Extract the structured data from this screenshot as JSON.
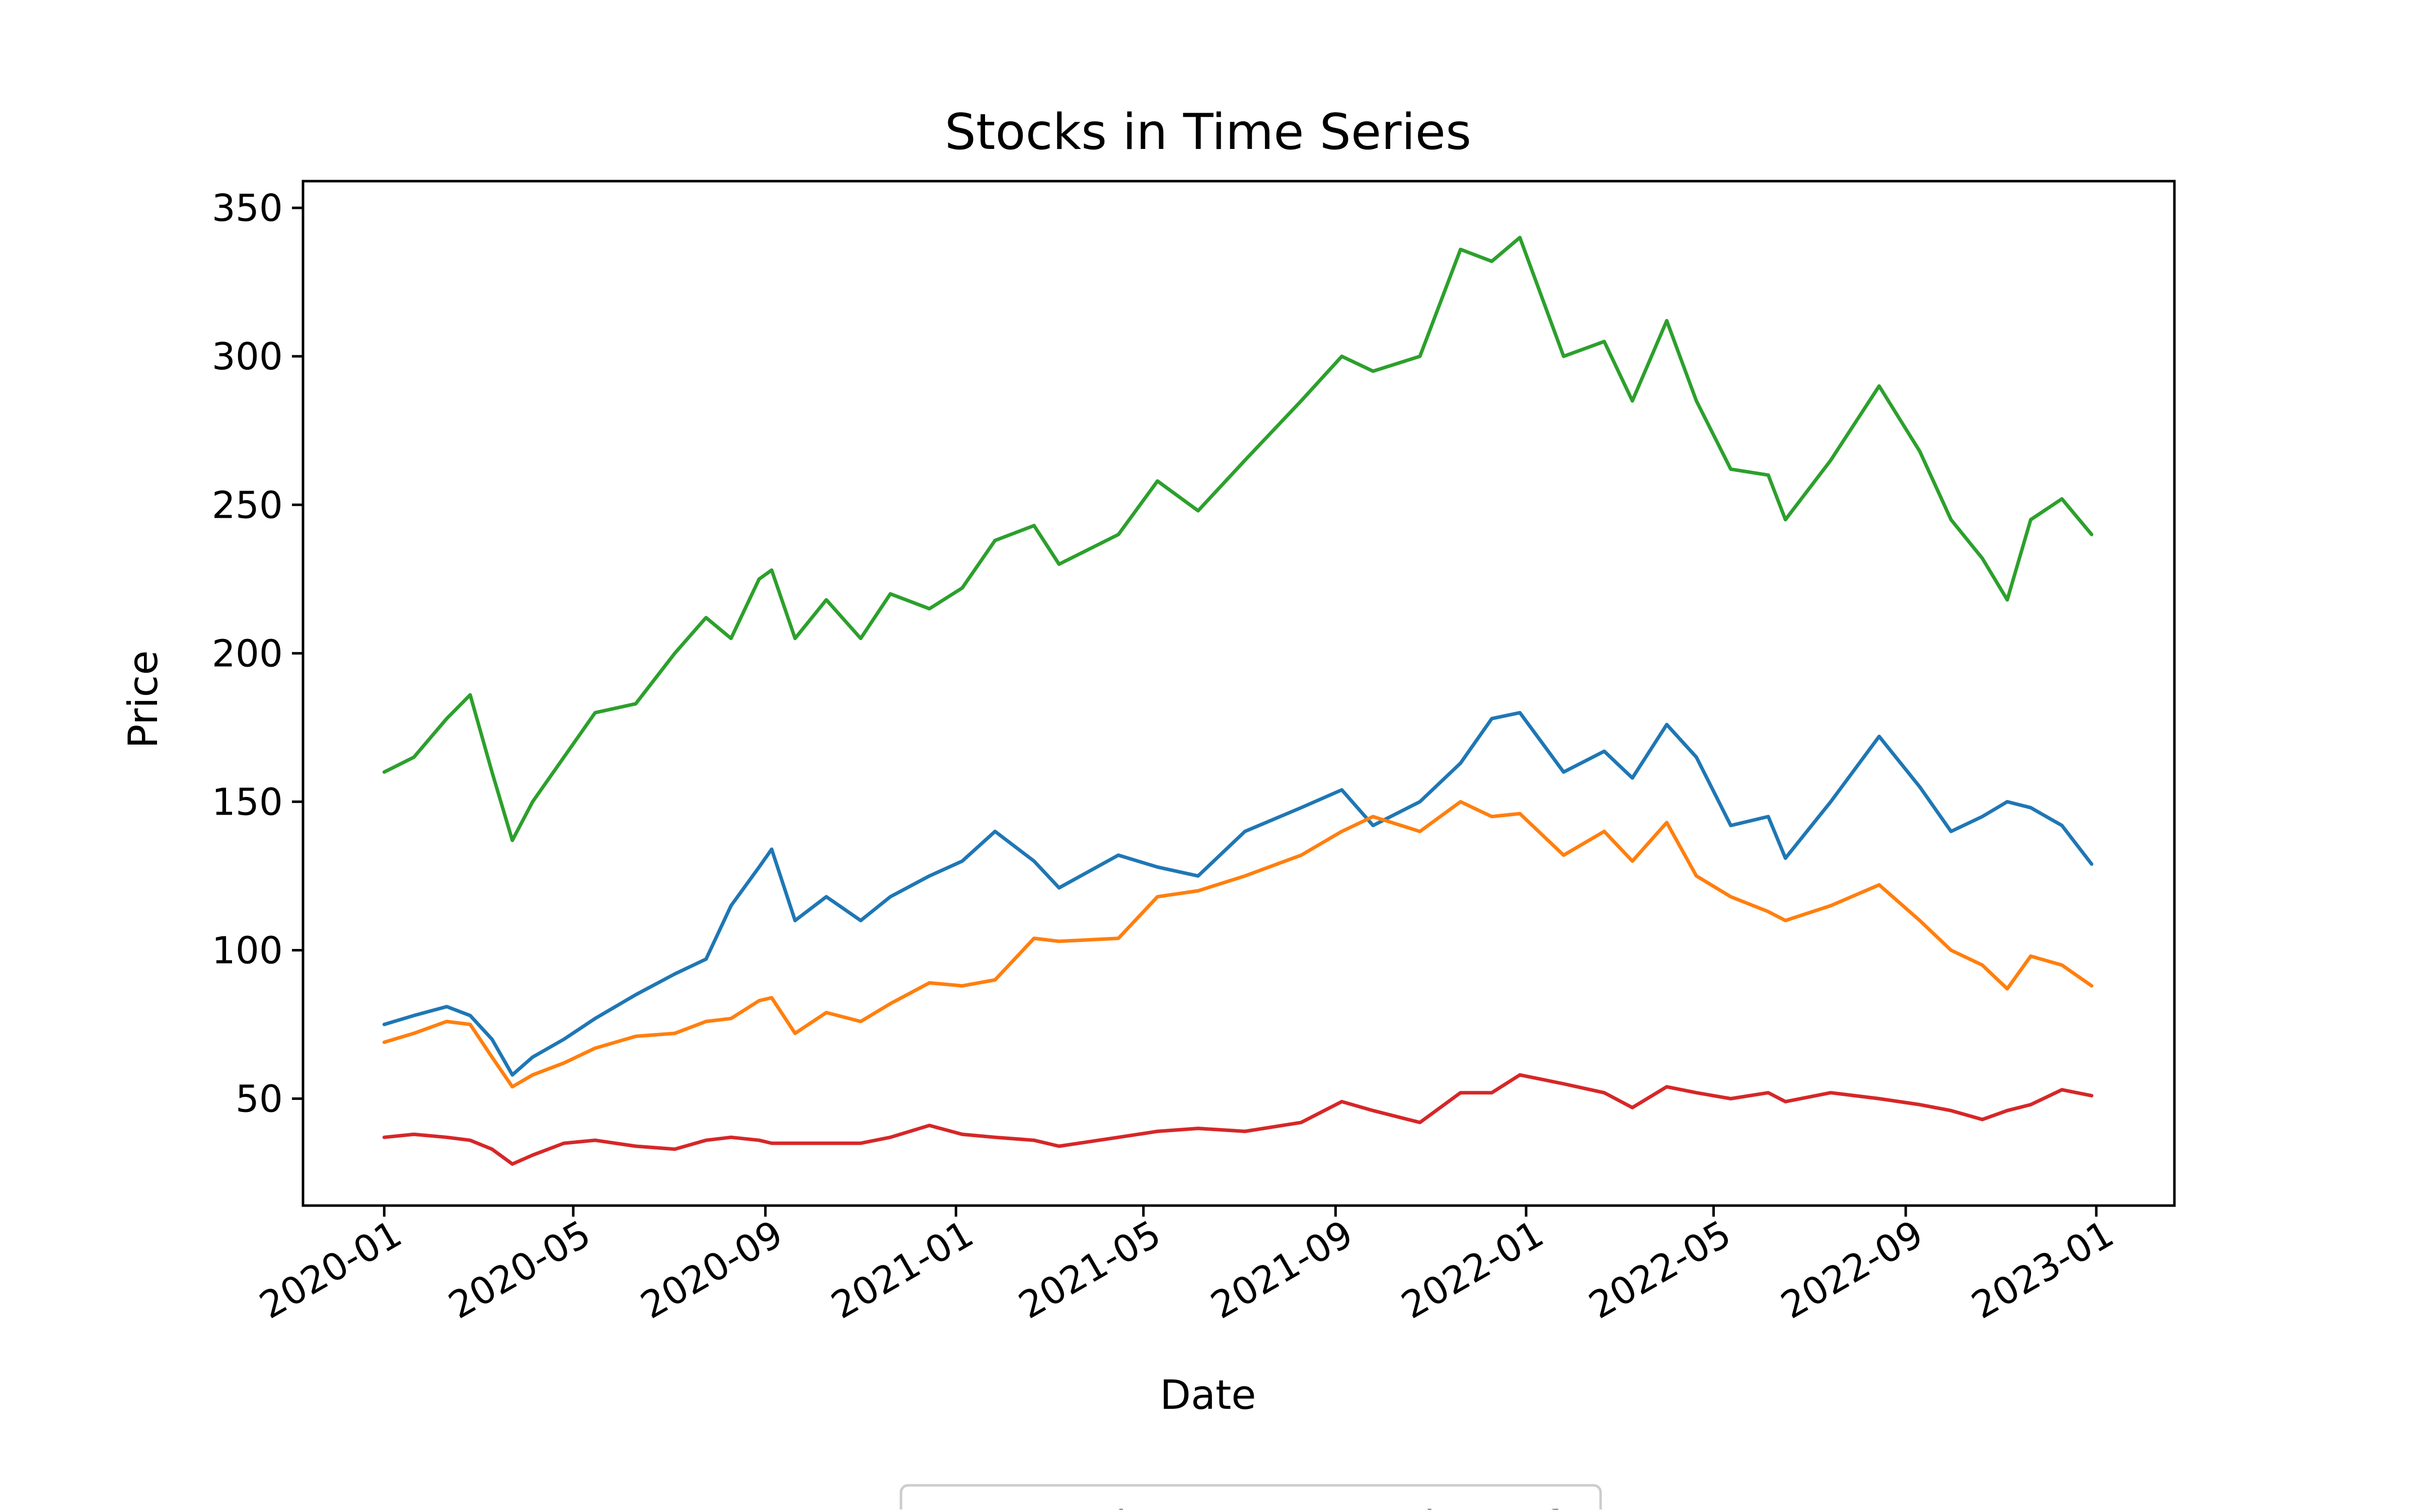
{
  "chart_data": {
    "type": "line",
    "title": "Stocks in Time Series",
    "xlabel": "Date",
    "ylabel": "Price",
    "xlim": [
      "2019-11-10",
      "2023-02-20"
    ],
    "ylim": [
      14,
      359
    ],
    "x_ticks": [
      "2020-01",
      "2020-05",
      "2020-09",
      "2021-01",
      "2021-05",
      "2021-09",
      "2022-01",
      "2022-05",
      "2022-09",
      "2023-01"
    ],
    "y_ticks": [
      50,
      100,
      150,
      200,
      250,
      300,
      350
    ],
    "grid": false,
    "legend": {
      "placement": "bottom-center",
      "visible_partially": true
    },
    "series": [
      {
        "name": "Apple",
        "color": "#1f77b4",
        "points": [
          [
            "2020-01-01",
            75
          ],
          [
            "2020-01-20",
            78
          ],
          [
            "2020-02-10",
            81
          ],
          [
            "2020-02-25",
            78
          ],
          [
            "2020-03-10",
            70
          ],
          [
            "2020-03-23",
            58
          ],
          [
            "2020-04-05",
            64
          ],
          [
            "2020-04-25",
            70
          ],
          [
            "2020-05-15",
            77
          ],
          [
            "2020-06-10",
            85
          ],
          [
            "2020-07-05",
            92
          ],
          [
            "2020-07-25",
            97
          ],
          [
            "2020-08-10",
            115
          ],
          [
            "2020-08-28",
            128
          ],
          [
            "2020-09-05",
            134
          ],
          [
            "2020-09-20",
            110
          ],
          [
            "2020-10-10",
            118
          ],
          [
            "2020-11-01",
            110
          ],
          [
            "2020-11-20",
            118
          ],
          [
            "2020-12-15",
            125
          ],
          [
            "2021-01-05",
            130
          ],
          [
            "2021-01-26",
            140
          ],
          [
            "2021-02-20",
            130
          ],
          [
            "2021-03-08",
            121
          ],
          [
            "2021-04-15",
            132
          ],
          [
            "2021-05-10",
            128
          ],
          [
            "2021-06-05",
            125
          ],
          [
            "2021-07-05",
            140
          ],
          [
            "2021-08-10",
            148
          ],
          [
            "2021-09-05",
            154
          ],
          [
            "2021-09-25",
            142
          ],
          [
            "2021-10-25",
            150
          ],
          [
            "2021-11-20",
            163
          ],
          [
            "2021-12-10",
            178
          ],
          [
            "2021-12-28",
            180
          ],
          [
            "2022-01-25",
            160
          ],
          [
            "2022-02-20",
            167
          ],
          [
            "2022-03-10",
            158
          ],
          [
            "2022-04-01",
            176
          ],
          [
            "2022-04-20",
            165
          ],
          [
            "2022-05-12",
            142
          ],
          [
            "2022-06-05",
            145
          ],
          [
            "2022-06-16",
            131
          ],
          [
            "2022-07-15",
            150
          ],
          [
            "2022-08-15",
            172
          ],
          [
            "2022-09-10",
            155
          ],
          [
            "2022-09-30",
            140
          ],
          [
            "2022-10-20",
            145
          ],
          [
            "2022-11-05",
            150
          ],
          [
            "2022-11-20",
            148
          ],
          [
            "2022-12-10",
            142
          ],
          [
            "2022-12-29",
            129
          ]
        ]
      },
      {
        "name": "Microsoft",
        "color": "#ff7f0e",
        "points": [
          [
            "2020-01-01",
            69
          ],
          [
            "2020-01-20",
            72
          ],
          [
            "2020-02-10",
            76
          ],
          [
            "2020-02-25",
            75
          ],
          [
            "2020-03-10",
            64
          ],
          [
            "2020-03-23",
            54
          ],
          [
            "2020-04-05",
            58
          ],
          [
            "2020-04-25",
            62
          ],
          [
            "2020-05-15",
            67
          ],
          [
            "2020-06-10",
            71
          ],
          [
            "2020-07-05",
            72
          ],
          [
            "2020-07-25",
            76
          ],
          [
            "2020-08-10",
            77
          ],
          [
            "2020-08-28",
            83
          ],
          [
            "2020-09-05",
            84
          ],
          [
            "2020-09-20",
            72
          ],
          [
            "2020-10-10",
            79
          ],
          [
            "2020-11-01",
            76
          ],
          [
            "2020-11-20",
            82
          ],
          [
            "2020-12-15",
            89
          ],
          [
            "2021-01-05",
            88
          ],
          [
            "2021-01-26",
            90
          ],
          [
            "2021-02-20",
            104
          ],
          [
            "2021-03-08",
            103
          ],
          [
            "2021-04-15",
            104
          ],
          [
            "2021-05-10",
            118
          ],
          [
            "2021-06-05",
            120
          ],
          [
            "2021-07-05",
            125
          ],
          [
            "2021-08-10",
            132
          ],
          [
            "2021-09-05",
            140
          ],
          [
            "2021-09-25",
            145
          ],
          [
            "2021-10-25",
            140
          ],
          [
            "2021-11-20",
            150
          ],
          [
            "2021-12-10",
            145
          ],
          [
            "2021-12-28",
            146
          ],
          [
            "2022-01-25",
            132
          ],
          [
            "2022-02-20",
            140
          ],
          [
            "2022-03-10",
            130
          ],
          [
            "2022-04-01",
            143
          ],
          [
            "2022-04-20",
            125
          ],
          [
            "2022-05-12",
            118
          ],
          [
            "2022-06-05",
            113
          ],
          [
            "2022-06-16",
            110
          ],
          [
            "2022-07-15",
            115
          ],
          [
            "2022-08-15",
            122
          ],
          [
            "2022-09-10",
            110
          ],
          [
            "2022-09-30",
            100
          ],
          [
            "2022-10-20",
            95
          ],
          [
            "2022-11-05",
            87
          ],
          [
            "2022-11-20",
            98
          ],
          [
            "2022-12-10",
            95
          ],
          [
            "2022-12-29",
            88
          ]
        ]
      },
      {
        "name": "",
        "color": "#2ca02c",
        "points": [
          [
            "2020-01-01",
            160
          ],
          [
            "2020-01-20",
            165
          ],
          [
            "2020-02-10",
            178
          ],
          [
            "2020-02-25",
            186
          ],
          [
            "2020-03-10",
            160
          ],
          [
            "2020-03-23",
            137
          ],
          [
            "2020-04-05",
            150
          ],
          [
            "2020-04-25",
            165
          ],
          [
            "2020-05-15",
            180
          ],
          [
            "2020-06-10",
            183
          ],
          [
            "2020-07-05",
            200
          ],
          [
            "2020-07-25",
            212
          ],
          [
            "2020-08-10",
            205
          ],
          [
            "2020-08-28",
            225
          ],
          [
            "2020-09-05",
            228
          ],
          [
            "2020-09-20",
            205
          ],
          [
            "2020-10-10",
            218
          ],
          [
            "2020-11-01",
            205
          ],
          [
            "2020-11-20",
            220
          ],
          [
            "2020-12-15",
            215
          ],
          [
            "2021-01-05",
            222
          ],
          [
            "2021-01-26",
            238
          ],
          [
            "2021-02-20",
            243
          ],
          [
            "2021-03-08",
            230
          ],
          [
            "2021-04-15",
            240
          ],
          [
            "2021-05-10",
            258
          ],
          [
            "2021-06-05",
            248
          ],
          [
            "2021-07-05",
            265
          ],
          [
            "2021-08-10",
            285
          ],
          [
            "2021-09-05",
            300
          ],
          [
            "2021-09-25",
            295
          ],
          [
            "2021-10-25",
            300
          ],
          [
            "2021-11-20",
            336
          ],
          [
            "2021-12-10",
            332
          ],
          [
            "2021-12-28",
            340
          ],
          [
            "2022-01-25",
            300
          ],
          [
            "2022-02-20",
            305
          ],
          [
            "2022-03-10",
            285
          ],
          [
            "2022-04-01",
            312
          ],
          [
            "2022-04-20",
            285
          ],
          [
            "2022-05-12",
            262
          ],
          [
            "2022-06-05",
            260
          ],
          [
            "2022-06-16",
            245
          ],
          [
            "2022-07-15",
            265
          ],
          [
            "2022-08-15",
            290
          ],
          [
            "2022-09-10",
            268
          ],
          [
            "2022-09-30",
            245
          ],
          [
            "2022-10-20",
            232
          ],
          [
            "2022-11-05",
            218
          ],
          [
            "2022-11-20",
            245
          ],
          [
            "2022-12-10",
            252
          ],
          [
            "2022-12-29",
            240
          ]
        ]
      },
      {
        "name": "",
        "color": "#d62728",
        "points": [
          [
            "2020-01-01",
            37
          ],
          [
            "2020-01-20",
            38
          ],
          [
            "2020-02-10",
            37
          ],
          [
            "2020-02-25",
            36
          ],
          [
            "2020-03-10",
            33
          ],
          [
            "2020-03-23",
            28
          ],
          [
            "2020-04-05",
            31
          ],
          [
            "2020-04-25",
            35
          ],
          [
            "2020-05-15",
            36
          ],
          [
            "2020-06-10",
            34
          ],
          [
            "2020-07-05",
            33
          ],
          [
            "2020-07-25",
            36
          ],
          [
            "2020-08-10",
            37
          ],
          [
            "2020-08-28",
            36
          ],
          [
            "2020-09-05",
            35
          ],
          [
            "2020-09-20",
            35
          ],
          [
            "2020-10-10",
            35
          ],
          [
            "2020-11-01",
            35
          ],
          [
            "2020-11-20",
            37
          ],
          [
            "2020-12-15",
            41
          ],
          [
            "2021-01-05",
            38
          ],
          [
            "2021-01-26",
            37
          ],
          [
            "2021-02-20",
            36
          ],
          [
            "2021-03-08",
            34
          ],
          [
            "2021-04-15",
            37
          ],
          [
            "2021-05-10",
            39
          ],
          [
            "2021-06-05",
            40
          ],
          [
            "2021-07-05",
            39
          ],
          [
            "2021-08-10",
            42
          ],
          [
            "2021-09-05",
            49
          ],
          [
            "2021-09-25",
            46
          ],
          [
            "2021-10-25",
            42
          ],
          [
            "2021-11-20",
            52
          ],
          [
            "2021-12-10",
            52
          ],
          [
            "2021-12-28",
            58
          ],
          [
            "2022-01-25",
            55
          ],
          [
            "2022-02-20",
            52
          ],
          [
            "2022-03-10",
            47
          ],
          [
            "2022-04-01",
            54
          ],
          [
            "2022-04-20",
            52
          ],
          [
            "2022-05-12",
            50
          ],
          [
            "2022-06-05",
            52
          ],
          [
            "2022-06-16",
            49
          ],
          [
            "2022-07-15",
            52
          ],
          [
            "2022-08-15",
            50
          ],
          [
            "2022-09-10",
            48
          ],
          [
            "2022-09-30",
            46
          ],
          [
            "2022-10-20",
            43
          ],
          [
            "2022-11-05",
            46
          ],
          [
            "2022-11-20",
            48
          ],
          [
            "2022-12-10",
            53
          ],
          [
            "2022-12-29",
            51
          ]
        ]
      }
    ]
  }
}
